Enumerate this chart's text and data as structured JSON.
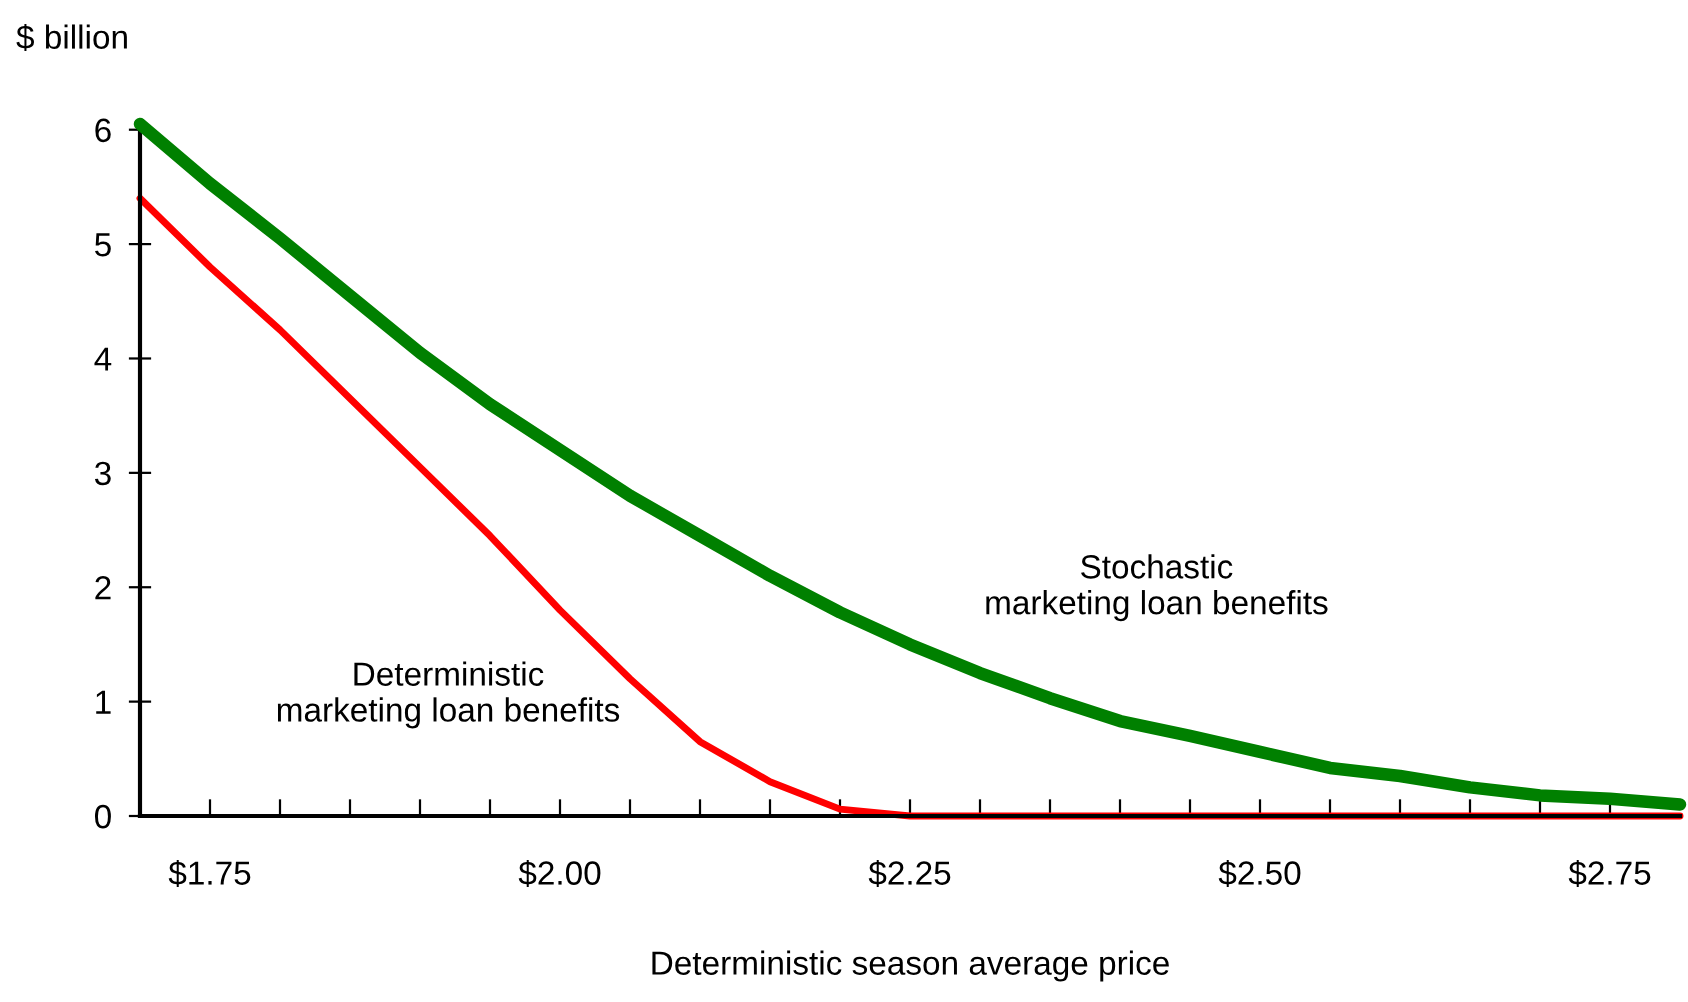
{
  "chart_data": {
    "type": "line",
    "ylabel": "$ billion",
    "xlabel": "Deterministic season average price",
    "x": [
      1.7,
      1.75,
      1.8,
      1.85,
      1.9,
      1.95,
      2.0,
      2.05,
      2.1,
      2.15,
      2.2,
      2.25,
      2.3,
      2.35,
      2.4,
      2.45,
      2.5,
      2.55,
      2.6,
      2.65,
      2.7,
      2.75,
      2.8
    ],
    "series": [
      {
        "name": "Stochastic\nmarketing loan benefits",
        "color": "#008000",
        "values": [
          6.05,
          5.53,
          5.05,
          4.55,
          4.05,
          3.6,
          3.2,
          2.8,
          2.45,
          2.1,
          1.78,
          1.5,
          1.25,
          1.03,
          0.83,
          0.7,
          0.56,
          0.42,
          0.35,
          0.25,
          0.18,
          0.15,
          0.1
        ]
      },
      {
        "name": "Deterministic\nmarketing loan benefits",
        "color": "#ff0000",
        "values": [
          5.4,
          4.8,
          4.25,
          3.65,
          3.05,
          2.45,
          1.8,
          1.2,
          0.65,
          0.3,
          0.06,
          0,
          0,
          0,
          0,
          0,
          0,
          0,
          0,
          0,
          0,
          0,
          0
        ]
      }
    ],
    "xlim": [
      1.7,
      2.8
    ],
    "ylim": [
      0,
      6.05
    ],
    "xticks": [
      {
        "value": 1.75,
        "label": "$1.75"
      },
      {
        "value": 1.8,
        "label": null
      },
      {
        "value": 1.85,
        "label": null
      },
      {
        "value": 1.9,
        "label": null
      },
      {
        "value": 1.95,
        "label": null
      },
      {
        "value": 2.0,
        "label": "$2.00"
      },
      {
        "value": 2.05,
        "label": null
      },
      {
        "value": 2.1,
        "label": null
      },
      {
        "value": 2.15,
        "label": null
      },
      {
        "value": 2.2,
        "label": null
      },
      {
        "value": 2.25,
        "label": "$2.25"
      },
      {
        "value": 2.3,
        "label": null
      },
      {
        "value": 2.35,
        "label": null
      },
      {
        "value": 2.4,
        "label": null
      },
      {
        "value": 2.45,
        "label": null
      },
      {
        "value": 2.5,
        "label": "$2.50"
      },
      {
        "value": 2.55,
        "label": null
      },
      {
        "value": 2.6,
        "label": null
      },
      {
        "value": 2.65,
        "label": null
      },
      {
        "value": 2.7,
        "label": null
      },
      {
        "value": 2.75,
        "label": "$2.75"
      }
    ],
    "yticks": [
      0,
      1,
      2,
      3,
      4,
      5,
      6
    ],
    "grid": false,
    "legend": false,
    "marker": "none",
    "line_style": "solid"
  }
}
